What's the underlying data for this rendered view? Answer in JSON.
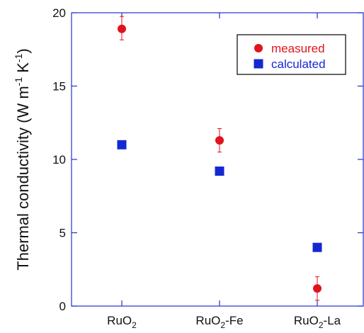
{
  "chart_data": {
    "type": "scatter",
    "categories": [
      "RuO",
      "RuO",
      "RuO"
    ],
    "category_subscripts": [
      "2",
      "2",
      "2"
    ],
    "category_suffixes": [
      "",
      "-Fe",
      "-La"
    ],
    "ylabel_main": "Thermal conductivity (W m",
    "ylabel_sup1": "-1",
    "ylabel_mid": " K",
    "ylabel_sup2": "-1",
    "ylabel_end": ")",
    "ylim": [
      0,
      20
    ],
    "yticks": [
      "0",
      "5",
      "10",
      "15",
      "20"
    ],
    "legend_position": "top-right",
    "series": [
      {
        "name": "measured",
        "marker": "circle",
        "color": "#e0141e",
        "values": [
          18.9,
          11.3,
          1.2
        ],
        "error": [
          [
            0.75,
            0.85
          ],
          [
            0.8,
            0.8
          ],
          [
            0.8,
            0.8
          ]
        ]
      },
      {
        "name": "calculated",
        "marker": "square",
        "color": "#1428d2",
        "values": [
          11.0,
          9.2,
          4.0
        ]
      }
    ],
    "axis_color": "#2233cc"
  }
}
